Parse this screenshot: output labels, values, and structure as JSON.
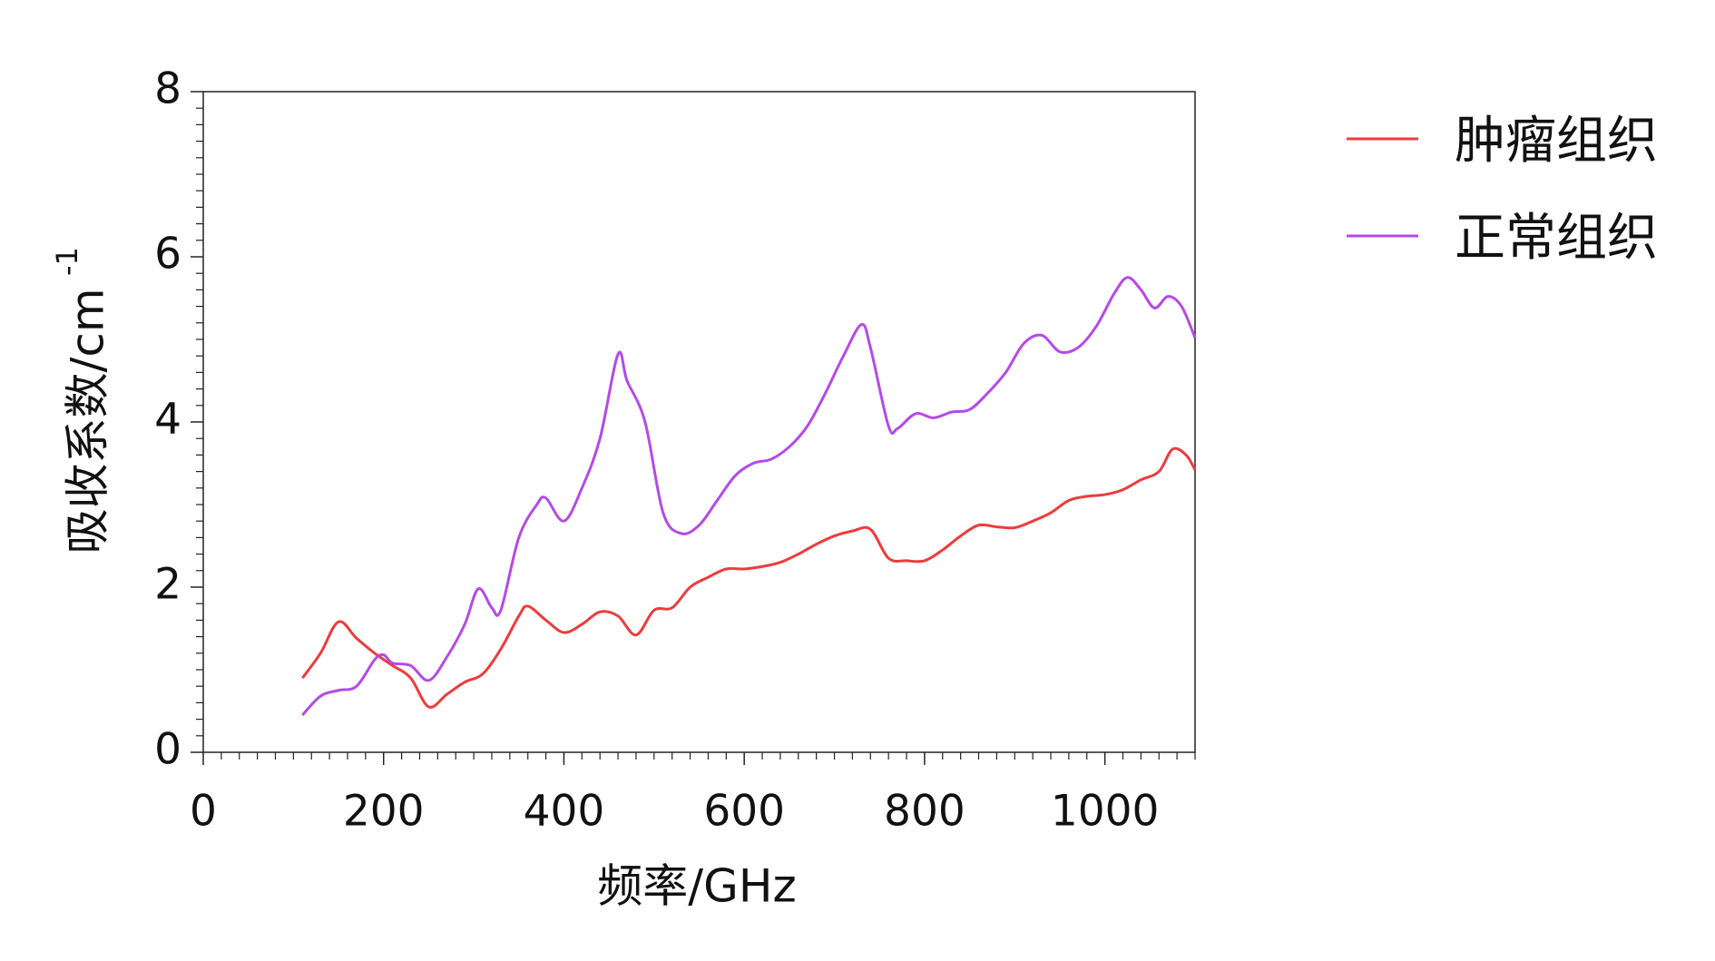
{
  "chart_data": {
    "type": "line",
    "xlabel": "频率/GHz",
    "ylabel": "吸收系数/cm",
    "ylabel_sup": "-1",
    "xlim": [
      0,
      1100
    ],
    "ylim": [
      0,
      8
    ],
    "xticks": [
      0,
      200,
      400,
      600,
      800,
      1000
    ],
    "yticks": [
      0,
      2,
      4,
      6,
      8
    ],
    "minor_divisions": 10,
    "legend": "right",
    "series": [
      {
        "name": "肿瘤组织",
        "color": "#ee3b3b",
        "x": [
          110,
          130,
          150,
          170,
          190,
          210,
          230,
          250,
          270,
          290,
          310,
          330,
          350,
          360,
          380,
          400,
          420,
          440,
          460,
          480,
          500,
          520,
          540,
          560,
          580,
          600,
          620,
          640,
          660,
          680,
          700,
          720,
          740,
          760,
          780,
          800,
          820,
          840,
          860,
          880,
          900,
          920,
          940,
          960,
          980,
          1000,
          1020,
          1040,
          1060,
          1075,
          1090,
          1100
        ],
        "values": [
          0.9,
          1.2,
          1.58,
          1.38,
          1.2,
          1.05,
          0.9,
          0.55,
          0.7,
          0.85,
          0.95,
          1.25,
          1.65,
          1.77,
          1.6,
          1.45,
          1.55,
          1.7,
          1.65,
          1.42,
          1.72,
          1.75,
          2.0,
          2.12,
          2.22,
          2.22,
          2.25,
          2.3,
          2.4,
          2.52,
          2.62,
          2.68,
          2.7,
          2.35,
          2.32,
          2.32,
          2.45,
          2.62,
          2.75,
          2.73,
          2.72,
          2.8,
          2.9,
          3.05,
          3.1,
          3.12,
          3.18,
          3.3,
          3.4,
          3.67,
          3.6,
          3.42
        ]
      },
      {
        "name": "正常组织",
        "color": "#b44ae8",
        "x": [
          110,
          130,
          150,
          170,
          190,
          200,
          210,
          230,
          250,
          270,
          290,
          305,
          320,
          330,
          350,
          370,
          380,
          400,
          420,
          440,
          460,
          470,
          490,
          510,
          530,
          550,
          570,
          590,
          610,
          630,
          650,
          670,
          690,
          710,
          730,
          740,
          760,
          770,
          790,
          810,
          830,
          850,
          870,
          890,
          910,
          930,
          950,
          970,
          990,
          1010,
          1025,
          1040,
          1055,
          1070,
          1085,
          1100
        ],
        "values": [
          0.45,
          0.68,
          0.75,
          0.8,
          1.12,
          1.18,
          1.08,
          1.05,
          0.87,
          1.15,
          1.55,
          1.98,
          1.75,
          1.72,
          2.6,
          3.0,
          3.08,
          2.8,
          3.2,
          3.8,
          4.82,
          4.5,
          4.0,
          2.9,
          2.65,
          2.75,
          3.05,
          3.35,
          3.5,
          3.55,
          3.7,
          3.95,
          4.35,
          4.8,
          5.18,
          4.9,
          3.95,
          3.92,
          4.1,
          4.05,
          4.12,
          4.15,
          4.35,
          4.6,
          4.95,
          5.05,
          4.85,
          4.9,
          5.15,
          5.55,
          5.75,
          5.6,
          5.38,
          5.52,
          5.4,
          5.02
        ]
      }
    ]
  }
}
